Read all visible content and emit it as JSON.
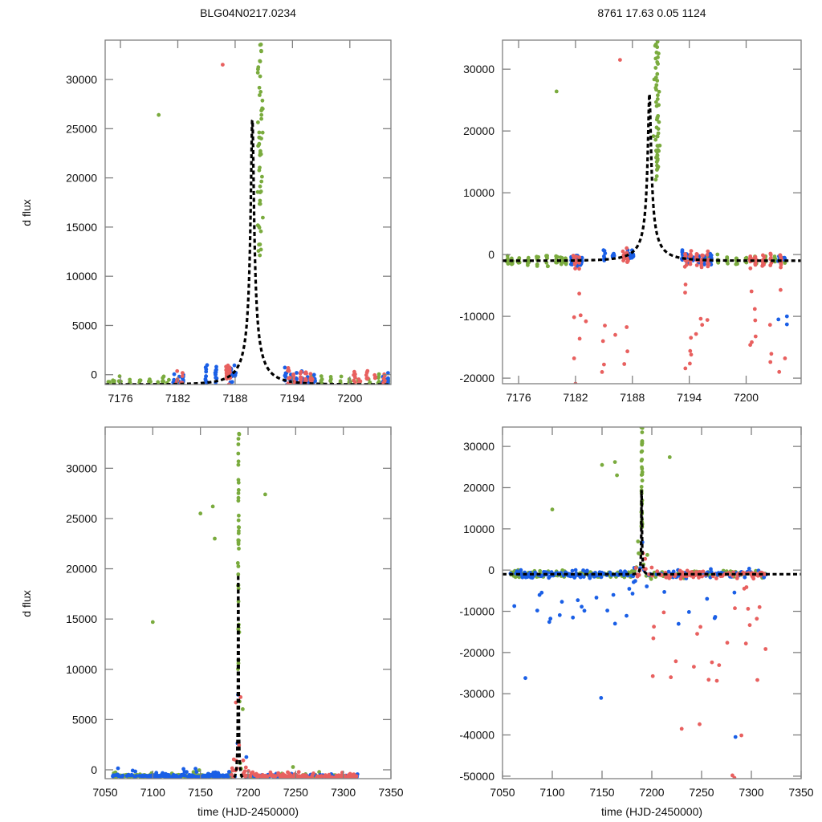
{
  "titles": {
    "left": "BLG04N0217.0234",
    "right": "8761  17.63  0.05  1124"
  },
  "colors": {
    "green": "#7aab3e",
    "blue": "#1a5fe6",
    "red": "#e8605f",
    "model": "#000000",
    "frame": "#808080"
  },
  "chart_data": [
    {
      "id": "top-left",
      "type": "scatter",
      "title": "BLG04N0217.0234",
      "xlabel": "",
      "ylabel": "d flux",
      "xlim": [
        7174.4,
        7204.3
      ],
      "ylim": [
        -1000,
        34000
      ],
      "xticks": [
        7176,
        7182,
        7188,
        7194,
        7200
      ],
      "yticks": [
        0,
        5000,
        10000,
        15000,
        20000,
        25000,
        30000
      ],
      "model": {
        "type": "line",
        "style": "dashed",
        "t0": 7189.8,
        "peak": 26000,
        "baseline": -1000,
        "tE": 3.2
      },
      "series": [
        {
          "name": "green",
          "color": "#7aab3e",
          "description": "dense baseline near 0, rises to >30000 at 7190.5-7191"
        },
        {
          "name": "blue",
          "color": "#1a5fe6",
          "description": "clusters at 7182, 7185-7188, 7193-7196, 7203-7204"
        },
        {
          "name": "red",
          "color": "#e8605f",
          "description": "clusters at 7182, 7187, 7193-7196, 7200-7203; outlier ~31500 at 7186.7"
        }
      ]
    },
    {
      "id": "top-right",
      "type": "scatter",
      "title": "8761  17.63  0.05  1124",
      "xlabel": "",
      "ylabel": "",
      "xlim": [
        7174.3,
        7205.8
      ],
      "ylim": [
        -20900,
        34700
      ],
      "xticks": [
        7176,
        7182,
        7188,
        7194,
        7200
      ],
      "yticks": [
        -20000,
        -10000,
        0,
        10000,
        20000,
        30000
      ],
      "model": {
        "type": "line",
        "style": "dashed",
        "t0": 7189.8,
        "peak": 26000,
        "baseline": -1000,
        "tE": 3.2
      },
      "series": [
        {
          "name": "green",
          "color": "#7aab3e"
        },
        {
          "name": "blue",
          "color": "#1a5fe6"
        },
        {
          "name": "red",
          "color": "#e8605f",
          "description": "negative outliers down to ~-20000 near 7184-7186"
        }
      ]
    },
    {
      "id": "bottom-left",
      "type": "scatter",
      "title": "",
      "xlabel": "time (HJD-2450000)",
      "ylabel": "d flux",
      "xlim": [
        7050,
        7350
      ],
      "ylim": [
        -880,
        34100
      ],
      "xticks": [
        7050,
        7100,
        7150,
        7200,
        7250,
        7300,
        7350
      ],
      "yticks": [
        0,
        5000,
        10000,
        15000,
        20000,
        25000,
        30000
      ],
      "model": {
        "type": "line",
        "style": "dashed",
        "t0": 7189.8,
        "peak": 26000,
        "baseline": -1000,
        "tE": 3.2
      },
      "data_range": [
        7058,
        7315
      ]
    },
    {
      "id": "bottom-right",
      "type": "scatter",
      "title": "",
      "xlabel": "time (HJD-2450000)",
      "ylabel": "",
      "xlim": [
        7050,
        7350
      ],
      "ylim": [
        -50600,
        34700
      ],
      "xticks": [
        7050,
        7100,
        7150,
        7200,
        7250,
        7300,
        7350
      ],
      "yticks": [
        -50000,
        -40000,
        -30000,
        -20000,
        -10000,
        0,
        10000,
        20000,
        30000
      ],
      "model": {
        "type": "line",
        "style": "dashed",
        "t0": 7189.8,
        "peak": 26000,
        "baseline": -1000,
        "tE": 3.2
      },
      "data_range": [
        7058,
        7315
      ]
    }
  ]
}
